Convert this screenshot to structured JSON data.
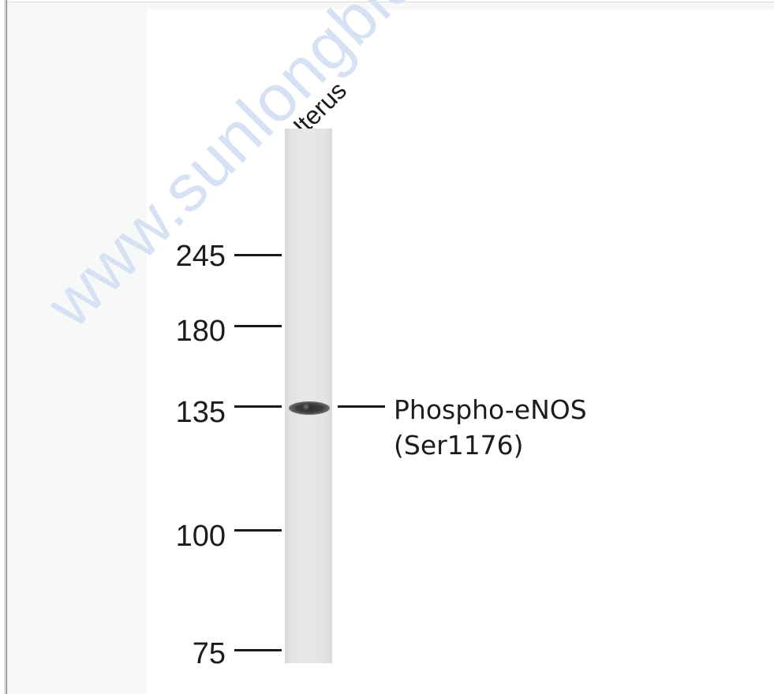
{
  "watermark": "www.sunlongbiotech.com",
  "lane_label": "Uterus",
  "markers": [
    {
      "label": "245"
    },
    {
      "label": "180"
    },
    {
      "label": "135"
    },
    {
      "label": "100"
    },
    {
      "label": "75"
    }
  ],
  "target": {
    "line1": "Phospho-eNOS",
    "line2": "(Ser1176)"
  }
}
